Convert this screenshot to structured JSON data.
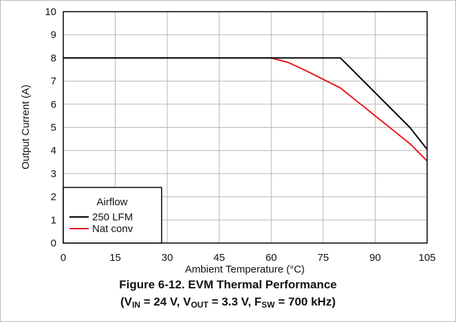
{
  "chart_data": {
    "type": "line",
    "xlabel": "Ambient Temperature (°C)",
    "ylabel": "Output Current (A)",
    "xlim": [
      0,
      105
    ],
    "ylim": [
      0,
      10
    ],
    "xticks": [
      0,
      15,
      30,
      45,
      60,
      75,
      90,
      105
    ],
    "yticks": [
      0,
      1,
      2,
      3,
      4,
      5,
      6,
      7,
      8,
      9,
      10
    ],
    "grid": true,
    "legend": {
      "title": "Airflow",
      "placement": "bottom-left"
    },
    "series": [
      {
        "name": "250 LFM",
        "color": "#000000",
        "x": [
          0,
          60,
          80,
          100,
          105
        ],
        "y": [
          8,
          8,
          8,
          5.0,
          4.05
        ]
      },
      {
        "name": "Nat conv",
        "color": "#e8141c",
        "x": [
          0,
          60,
          65,
          70,
          80,
          90,
          100,
          105
        ],
        "y": [
          8,
          8,
          7.8,
          7.45,
          6.7,
          5.5,
          4.3,
          3.55
        ]
      }
    ]
  },
  "caption": {
    "line1": "Figure 6-12. EVM Thermal Performance",
    "line2": {
      "open": "(V",
      "vin_sub": "IN",
      "vin_val": " = 24 V, V",
      "vout_sub": "OUT",
      "vout_val": " = 3.3 V, F",
      "fsw_sub": "SW",
      "fsw_val": " = 700 kHz)"
    }
  }
}
